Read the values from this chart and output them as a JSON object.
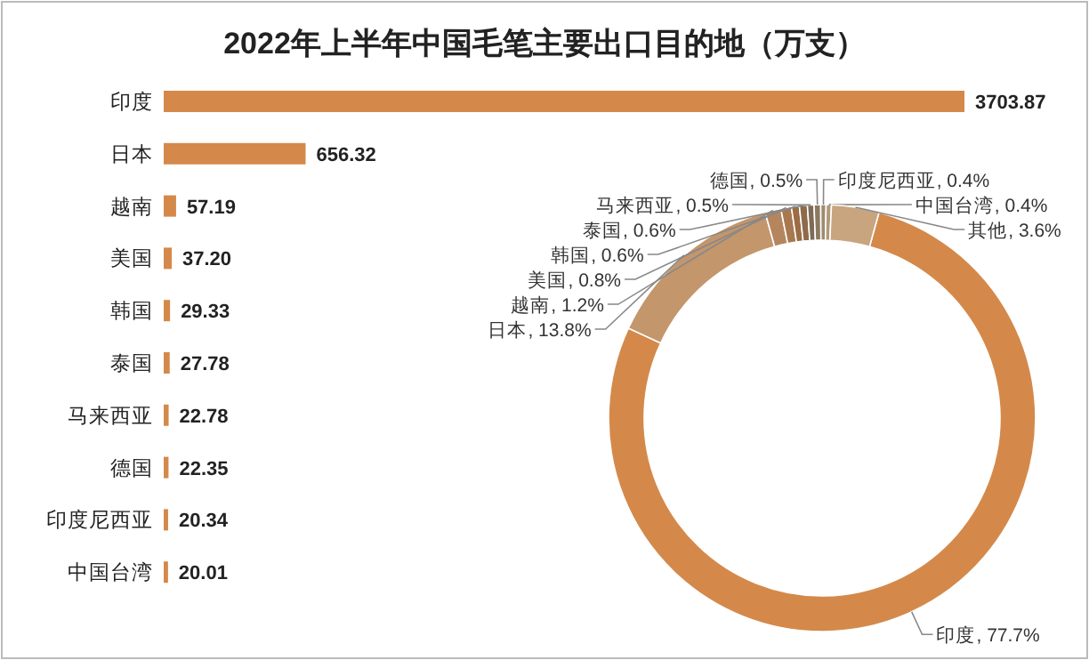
{
  "chart_data": [
    {
      "type": "bar",
      "orientation": "horizontal",
      "title": "2022年上半年中国毛笔主要出口目的地（万支）",
      "categories": [
        "印度",
        "日本",
        "越南",
        "美国",
        "韩国",
        "泰国",
        "马来西亚",
        "德国",
        "印度尼西亚",
        "中国台湾"
      ],
      "values": [
        3703.87,
        656.32,
        57.19,
        37.2,
        29.33,
        27.78,
        22.78,
        22.35,
        20.34,
        20.01
      ],
      "value_labels": [
        "3703.87",
        "656.32",
        "57.19",
        "37.20",
        "29.33",
        "27.78",
        "22.78",
        "22.35",
        "20.34",
        "20.01"
      ],
      "color": "#d4894a"
    },
    {
      "type": "donut",
      "categories": [
        "印度",
        "日本",
        "越南",
        "美国",
        "韩国",
        "泰国",
        "马来西亚",
        "德国",
        "印度尼西亚",
        "中国台湾",
        "其他"
      ],
      "values": [
        77.7,
        13.8,
        1.2,
        0.8,
        0.6,
        0.6,
        0.5,
        0.5,
        0.4,
        0.4,
        3.6
      ],
      "colors": [
        "#d4894a",
        "#c4966c",
        "#b5865e",
        "#a8784f",
        "#9c6c44",
        "#8f6a4a",
        "#7f6b55",
        "#8a7a62",
        "#a08b6e",
        "#b09a7a",
        "#c8a57e"
      ],
      "value_labels": [
        ", 77.7%",
        ", 13.8%",
        ", 1.2%",
        ", 0.8%",
        ", 0.6%",
        ", 0.6%",
        ", 0.5%",
        ", 0.5%",
        ", 0.4%",
        ", 0.4%",
        ", 3.6%"
      ]
    }
  ]
}
